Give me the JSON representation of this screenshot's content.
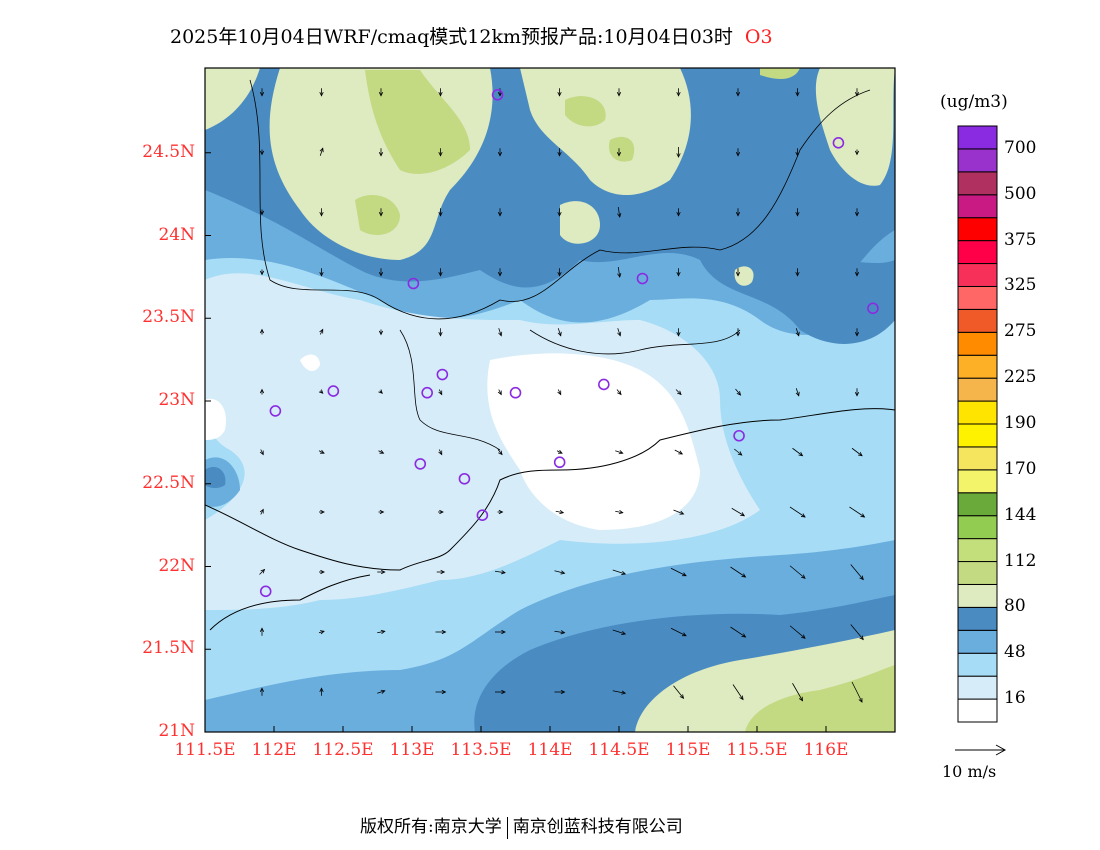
{
  "title": {
    "text": "2025年10月04日WRF/cmaq模式12km预报产品:10月04日03时",
    "species": "O3"
  },
  "map": {
    "lon_range": [
      111.5,
      116.5
    ],
    "lat_range": [
      21,
      25
    ],
    "lat_labels": [
      "24.5N",
      "24N",
      "23.5N",
      "23N",
      "22.5N",
      "22N",
      "21.5N",
      "21N"
    ],
    "lat_values": [
      24.5,
      24,
      23.5,
      23,
      22.5,
      22,
      21.5,
      21
    ],
    "lon_labels": [
      "111.5E",
      "112E",
      "112.5E",
      "113E",
      "113.5E",
      "114E",
      "114.5E",
      "115E",
      "115.5E",
      "116E"
    ],
    "lon_values": [
      111.5,
      112,
      112.5,
      113,
      113.5,
      114,
      114.5,
      115,
      115.5,
      116
    ],
    "sites": [
      [
        113.62,
        24.85
      ],
      [
        116.09,
        24.56
      ],
      [
        113.01,
        23.71
      ],
      [
        114.67,
        23.74
      ],
      [
        116.34,
        23.56
      ],
      [
        112.43,
        23.06
      ],
      [
        112.01,
        22.94
      ],
      [
        113.22,
        23.16
      ],
      [
        113.11,
        23.05
      ],
      [
        113.75,
        23.05
      ],
      [
        114.39,
        23.1
      ],
      [
        115.37,
        22.79
      ],
      [
        113.06,
        22.62
      ],
      [
        114.07,
        22.63
      ],
      [
        113.38,
        22.53
      ],
      [
        113.51,
        22.31
      ],
      [
        111.94,
        21.85
      ]
    ],
    "site_color": "#8a2be2",
    "wind_vectors": [
      [
        [
          0,
          -1.5
        ],
        [
          0,
          -1.5
        ],
        [
          0,
          -1.5
        ],
        [
          0,
          -1.5
        ],
        [
          0,
          -1.5
        ],
        [
          0,
          -1.5
        ],
        [
          0,
          -1.5
        ],
        [
          0,
          -1.5
        ],
        [
          0,
          -1.5
        ],
        [
          0,
          -1.5
        ],
        [
          0,
          -1.5
        ]
      ],
      [
        [
          0,
          -1
        ],
        [
          0.5,
          1.5
        ],
        [
          0,
          -1.5
        ],
        [
          0,
          -1.5
        ],
        [
          0,
          -1.5
        ],
        [
          0,
          -1.5
        ],
        [
          0,
          -1.5
        ],
        [
          0,
          -2
        ],
        [
          0,
          -1.5
        ],
        [
          0,
          -1.5
        ],
        [
          0,
          -1
        ]
      ],
      [
        [
          0,
          -1
        ],
        [
          0,
          -1.5
        ],
        [
          0,
          -1.5
        ],
        [
          0,
          -1.5
        ],
        [
          0,
          -1.5
        ],
        [
          0,
          -1.5
        ],
        [
          0.3,
          -2
        ],
        [
          0,
          -1.5
        ],
        [
          0,
          -1.5
        ],
        [
          0,
          -1.5
        ],
        [
          0,
          -1.5
        ]
      ],
      [
        [
          0,
          -1
        ],
        [
          0,
          -1.5
        ],
        [
          0,
          -1.5
        ],
        [
          0,
          -1.5
        ],
        [
          0,
          -1.5
        ],
        [
          0,
          -1.5
        ],
        [
          0.3,
          -2
        ],
        [
          0,
          -1.5
        ],
        [
          0,
          -1.5
        ],
        [
          0,
          -1.5
        ],
        [
          0,
          -1.5
        ]
      ],
      [
        [
          0,
          1
        ],
        [
          0.5,
          1
        ],
        [
          0,
          -1
        ],
        [
          0,
          -1.5
        ],
        [
          0.5,
          -1.5
        ],
        [
          0.5,
          -1.5
        ],
        [
          0.5,
          -1.5
        ],
        [
          0,
          -1.5
        ],
        [
          0,
          -1.5
        ],
        [
          0.5,
          -1.5
        ],
        [
          0,
          -1.5
        ]
      ],
      [
        [
          0,
          1
        ],
        [
          0.5,
          -0.5
        ],
        [
          0.5,
          -0.5
        ],
        [
          0.5,
          -1
        ],
        [
          0.5,
          -1
        ],
        [
          0.5,
          -1
        ],
        [
          0.8,
          -1
        ],
        [
          1,
          -1
        ],
        [
          1,
          -1.2
        ],
        [
          0.5,
          -1.5
        ],
        [
          0,
          -1.5
        ]
      ],
      [
        [
          0.5,
          -1
        ],
        [
          1,
          -0.5
        ],
        [
          1,
          -0.5
        ],
        [
          0.5,
          -1
        ],
        [
          0.8,
          -1
        ],
        [
          1,
          -0.5
        ],
        [
          1.5,
          -0.5
        ],
        [
          1.5,
          -0.8
        ],
        [
          1.5,
          -1.2
        ],
        [
          2,
          -1.5
        ],
        [
          2,
          -1.5
        ]
      ],
      [
        [
          0.5,
          1
        ],
        [
          1,
          0
        ],
        [
          1,
          0
        ],
        [
          1,
          0
        ],
        [
          1,
          0
        ],
        [
          1.5,
          -0.3
        ],
        [
          1.5,
          -0.3
        ],
        [
          2,
          -0.8
        ],
        [
          2.5,
          -1.5
        ],
        [
          3,
          -2
        ],
        [
          3,
          -2
        ]
      ],
      [
        [
          1,
          1
        ],
        [
          1,
          0
        ],
        [
          1.5,
          0
        ],
        [
          1.5,
          0
        ],
        [
          2,
          -0.3
        ],
        [
          2,
          -0.5
        ],
        [
          2.5,
          -0.8
        ],
        [
          3,
          -1.5
        ],
        [
          3,
          -2
        ],
        [
          3,
          -2.5
        ],
        [
          2.5,
          -3
        ]
      ],
      [
        [
          0,
          1.5
        ],
        [
          1,
          0.3
        ],
        [
          1.5,
          0.3
        ],
        [
          2,
          0
        ],
        [
          2,
          0
        ],
        [
          2,
          -0.3
        ],
        [
          2.5,
          -0.8
        ],
        [
          3,
          -1.5
        ],
        [
          3,
          -2
        ],
        [
          3,
          -2.5
        ],
        [
          2.5,
          -3
        ]
      ],
      [
        [
          0,
          1.5
        ],
        [
          0,
          1.5
        ],
        [
          1.5,
          0.5
        ],
        [
          2,
          0
        ],
        [
          2,
          0
        ],
        [
          2,
          0
        ],
        [
          2.5,
          -0.5
        ],
        [
          2,
          -2.5
        ],
        [
          2,
          -3
        ],
        [
          2,
          -3.5
        ],
        [
          2,
          -4
        ]
      ]
    ]
  },
  "colorbar": {
    "unit": "(ug/m3)",
    "colors": [
      "#ffffff",
      "#d6ecf9",
      "#a6dcf5",
      "#6aaede",
      "#4a8cc2",
      "#deeac0",
      "#c3d982",
      "#c3df7c",
      "#92cc50",
      "#6aaa3a",
      "#f4f46a",
      "#f4e45e",
      "#fff200",
      "#ffe400",
      "#f5b54a",
      "#fdb025",
      "#ff8c00",
      "#f05a28",
      "#ff6666",
      "#f7305a",
      "#ff0048",
      "#ff0000",
      "#c81a82",
      "#b03060",
      "#9932cc",
      "#8a2be2"
    ],
    "labels": [
      "16",
      "48",
      "80",
      "112",
      "144",
      "170",
      "190",
      "225",
      "275",
      "325",
      "375",
      "500",
      "700"
    ]
  },
  "reference_vector": {
    "label": "10 m/s",
    "speed": 10
  },
  "footer": {
    "left": "版权所有:南京大学",
    "right": "南京创蓝科技有限公司"
  }
}
